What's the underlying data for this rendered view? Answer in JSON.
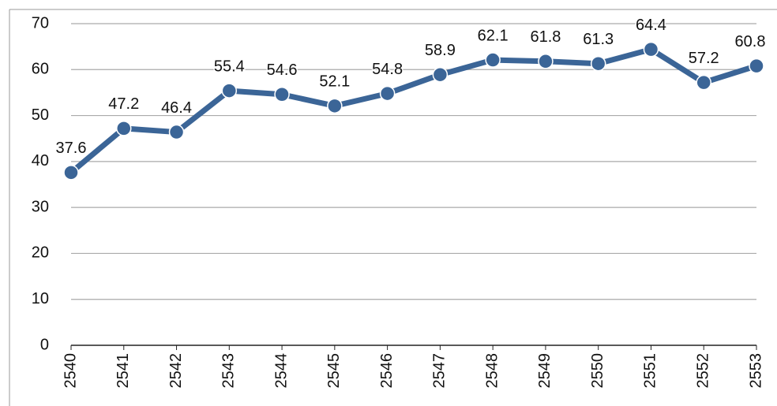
{
  "chart_data": {
    "type": "line",
    "categories": [
      "2540",
      "2541",
      "2542",
      "2543",
      "2544",
      "2545",
      "2546",
      "2547",
      "2548",
      "2549",
      "2550",
      "2551",
      "2552",
      "2553"
    ],
    "series": [
      {
        "name": "value",
        "color": "#3b6597",
        "values": [
          37.6,
          47.2,
          46.4,
          55.4,
          54.6,
          52.1,
          54.8,
          58.9,
          62.1,
          61.8,
          61.3,
          64.4,
          57.2,
          60.8
        ]
      }
    ],
    "ylim": [
      0,
      70
    ],
    "yticks": [
      0,
      10,
      20,
      30,
      40,
      50,
      60,
      70
    ],
    "grid": true
  }
}
